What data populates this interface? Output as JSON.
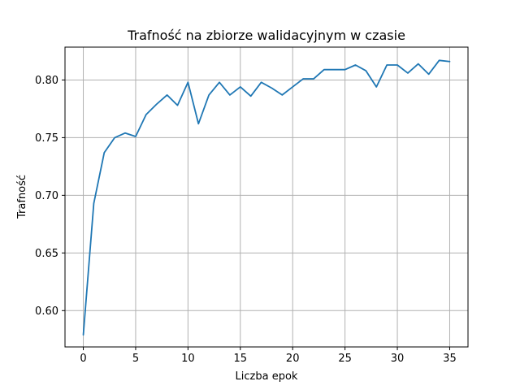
{
  "chart_data": {
    "type": "line",
    "title": "Trafność na zbiorze walidacyjnym w czasie",
    "xlabel": "Liczba epok",
    "ylabel": "Trafność",
    "xlim": [
      -1.75,
      36.75
    ],
    "ylim": [
      0.5685,
      0.8285
    ],
    "xticks": [
      0,
      5,
      10,
      15,
      20,
      25,
      30,
      35
    ],
    "xtick_labels": [
      "0",
      "5",
      "10",
      "15",
      "20",
      "25",
      "30",
      "35"
    ],
    "yticks": [
      0.6,
      0.65,
      0.7,
      0.75,
      0.8
    ],
    "ytick_labels": [
      "0.60",
      "0.65",
      "0.70",
      "0.75",
      "0.80"
    ],
    "grid": true,
    "color": "#1f77b4",
    "series": [
      {
        "x": [
          0,
          1,
          2,
          3,
          4,
          5,
          6,
          7,
          8,
          9,
          10,
          11,
          12,
          13,
          14,
          15,
          16,
          17,
          18,
          19,
          20,
          21,
          22,
          23,
          24,
          25,
          26,
          27,
          28,
          29,
          30,
          31,
          32,
          33,
          34,
          35
        ],
        "values": [
          0.579,
          0.693,
          0.737,
          0.75,
          0.754,
          0.751,
          0.77,
          0.779,
          0.787,
          0.778,
          0.798,
          0.762,
          0.787,
          0.798,
          0.787,
          0.794,
          0.786,
          0.798,
          0.793,
          0.787,
          0.794,
          0.801,
          0.801,
          0.809,
          0.809,
          0.809,
          0.813,
          0.808,
          0.794,
          0.813,
          0.813,
          0.806,
          0.814,
          0.805,
          0.817,
          0.816
        ]
      }
    ]
  }
}
